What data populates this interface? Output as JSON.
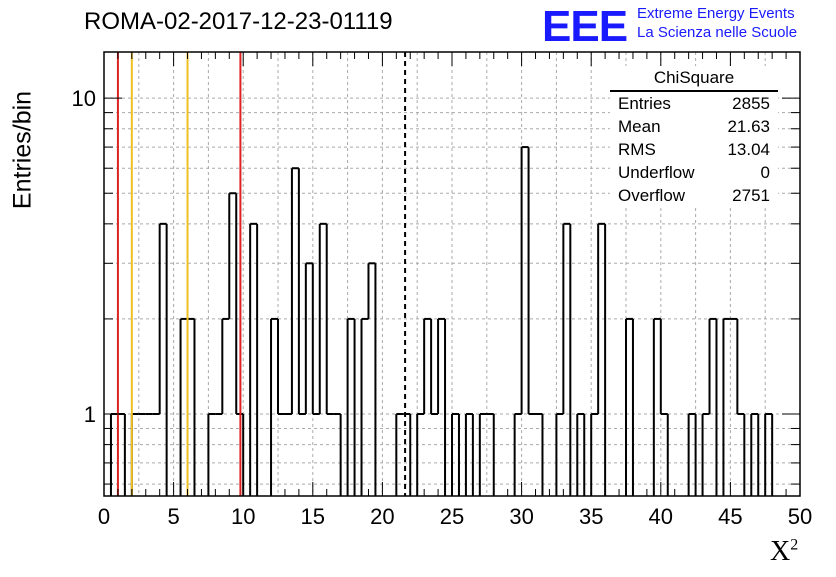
{
  "header": {
    "title": "ROMA-02-2017-12-23-01119",
    "logo": "EEE",
    "logo_line1": "Extreme Energy Events",
    "logo_line2": "La Scienza nelle Scuole"
  },
  "stats_box": {
    "title": "ChiSquare",
    "rows": [
      {
        "label": "Entries",
        "value": "2855"
      },
      {
        "label": "Mean",
        "value": "21.63"
      },
      {
        "label": "RMS",
        "value": "13.04"
      },
      {
        "label": "Underflow",
        "value": "0"
      },
      {
        "label": "Overflow",
        "value": "2751"
      }
    ]
  },
  "chart_data": {
    "type": "histogram",
    "xlabel": "X",
    "xlabel_superscript": "2",
    "ylabel": "Entries/bin",
    "xlim": [
      0,
      50
    ],
    "ylim": [
      0.55,
      14
    ],
    "y_scale": "log",
    "grid": true,
    "x_ticks": [
      "0",
      "5",
      "10",
      "15",
      "20",
      "25",
      "30",
      "35",
      "40",
      "45",
      "50"
    ],
    "y_ticks": [
      "1",
      "10"
    ],
    "bin_width": 0.5,
    "bins": [
      {
        "x": 0.5,
        "y": 1
      },
      {
        "x": 1.0,
        "y": 1
      },
      {
        "x": 2.0,
        "y": 1
      },
      {
        "x": 2.5,
        "y": 1
      },
      {
        "x": 3.0,
        "y": 1
      },
      {
        "x": 3.5,
        "y": 1
      },
      {
        "x": 4.0,
        "y": 4
      },
      {
        "x": 5.5,
        "y": 2
      },
      {
        "x": 6.0,
        "y": 2
      },
      {
        "x": 7.5,
        "y": 1
      },
      {
        "x": 8.0,
        "y": 1
      },
      {
        "x": 8.5,
        "y": 2
      },
      {
        "x": 9.0,
        "y": 5
      },
      {
        "x": 9.5,
        "y": 1
      },
      {
        "x": 10.5,
        "y": 4
      },
      {
        "x": 12.0,
        "y": 2
      },
      {
        "x": 12.5,
        "y": 1
      },
      {
        "x": 13.0,
        "y": 1
      },
      {
        "x": 13.5,
        "y": 6
      },
      {
        "x": 14.0,
        "y": 1
      },
      {
        "x": 14.5,
        "y": 3
      },
      {
        "x": 15.0,
        "y": 1
      },
      {
        "x": 15.5,
        "y": 4
      },
      {
        "x": 16.0,
        "y": 1
      },
      {
        "x": 16.5,
        "y": 1
      },
      {
        "x": 17.5,
        "y": 2
      },
      {
        "x": 18.5,
        "y": 2
      },
      {
        "x": 19.0,
        "y": 3
      },
      {
        "x": 21.0,
        "y": 1
      },
      {
        "x": 21.5,
        "y": 1
      },
      {
        "x": 22.5,
        "y": 1
      },
      {
        "x": 23.0,
        "y": 2
      },
      {
        "x": 23.5,
        "y": 1
      },
      {
        "x": 24.0,
        "y": 2
      },
      {
        "x": 25.0,
        "y": 1
      },
      {
        "x": 26.0,
        "y": 1
      },
      {
        "x": 27.0,
        "y": 1
      },
      {
        "x": 27.5,
        "y": 1
      },
      {
        "x": 29.5,
        "y": 1
      },
      {
        "x": 30.0,
        "y": 7
      },
      {
        "x": 30.5,
        "y": 1
      },
      {
        "x": 31.0,
        "y": 1
      },
      {
        "x": 32.5,
        "y": 1
      },
      {
        "x": 33.0,
        "y": 4
      },
      {
        "x": 34.0,
        "y": 1
      },
      {
        "x": 35.0,
        "y": 1
      },
      {
        "x": 35.5,
        "y": 4
      },
      {
        "x": 37.5,
        "y": 2
      },
      {
        "x": 39.5,
        "y": 2
      },
      {
        "x": 40.0,
        "y": 1
      },
      {
        "x": 42.0,
        "y": 1
      },
      {
        "x": 43.0,
        "y": 1
      },
      {
        "x": 43.5,
        "y": 2
      },
      {
        "x": 44.5,
        "y": 2
      },
      {
        "x": 45.0,
        "y": 2
      },
      {
        "x": 45.5,
        "y": 1
      },
      {
        "x": 46.5,
        "y": 1
      },
      {
        "x": 47.5,
        "y": 1
      }
    ],
    "reference_lines": [
      {
        "x": 1.0,
        "color": "#dd2222",
        "style": "solid"
      },
      {
        "x": 2.0,
        "color": "#f0c020",
        "style": "solid"
      },
      {
        "x": 6.0,
        "color": "#f0c020",
        "style": "solid"
      },
      {
        "x": 9.8,
        "color": "#dd2222",
        "style": "solid"
      },
      {
        "x": 21.63,
        "color": "#000000",
        "style": "dashed"
      }
    ]
  }
}
